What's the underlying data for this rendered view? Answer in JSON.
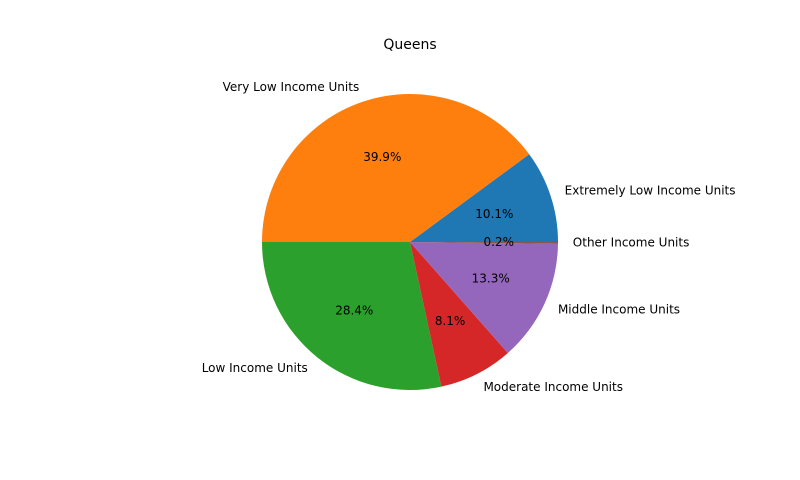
{
  "chart_data": {
    "type": "pie",
    "title": "Queens",
    "start_angle_deg": 0,
    "direction": "counterclockwise",
    "slices": [
      {
        "label": "Extremely Low Income Units",
        "value": 10.1,
        "pct_label": "10.1%",
        "color": "#1f77b4"
      },
      {
        "label": "Very Low Income Units",
        "value": 39.9,
        "pct_label": "39.9%",
        "color": "#ff7f0e"
      },
      {
        "label": "Low Income Units",
        "value": 28.4,
        "pct_label": "28.4%",
        "color": "#2ca02c"
      },
      {
        "label": "Moderate Income Units",
        "value": 8.1,
        "pct_label": "8.1%",
        "color": "#d62728"
      },
      {
        "label": "Middle Income Units",
        "value": 13.3,
        "pct_label": "13.3%",
        "color": "#9467bd"
      },
      {
        "label": "Other Income Units",
        "value": 0.2,
        "pct_label": "0.2%",
        "color": "#8c564b"
      }
    ]
  }
}
